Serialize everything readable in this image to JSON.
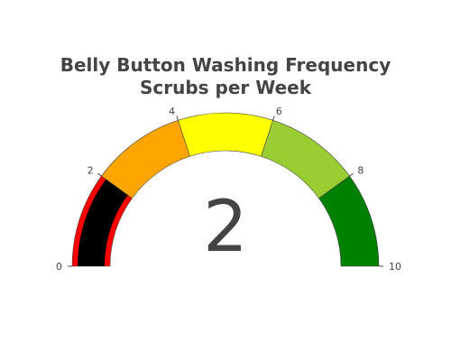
{
  "chart_data": {
    "type": "gauge",
    "title": "Belly Button Washing Frequency",
    "subtitle": "Scrubs per Week",
    "value": 2,
    "display_value": "2",
    "range": [
      0,
      10
    ],
    "ticks": [
      {
        "value": 0,
        "label": "0"
      },
      {
        "value": 2,
        "label": "2"
      },
      {
        "value": 4,
        "label": "4"
      },
      {
        "value": 6,
        "label": "6"
      },
      {
        "value": 8,
        "label": "8"
      },
      {
        "value": 10,
        "label": "10"
      }
    ],
    "steps": [
      {
        "range": [
          0,
          2
        ],
        "color": "#ff0000"
      },
      {
        "range": [
          2,
          4
        ],
        "color": "#ffa500"
      },
      {
        "range": [
          4,
          6
        ],
        "color": "#ffff00"
      },
      {
        "range": [
          6,
          8
        ],
        "color": "#9acd32"
      },
      {
        "range": [
          8,
          10
        ],
        "color": "#008000"
      }
    ],
    "bar_color": "#000000"
  }
}
